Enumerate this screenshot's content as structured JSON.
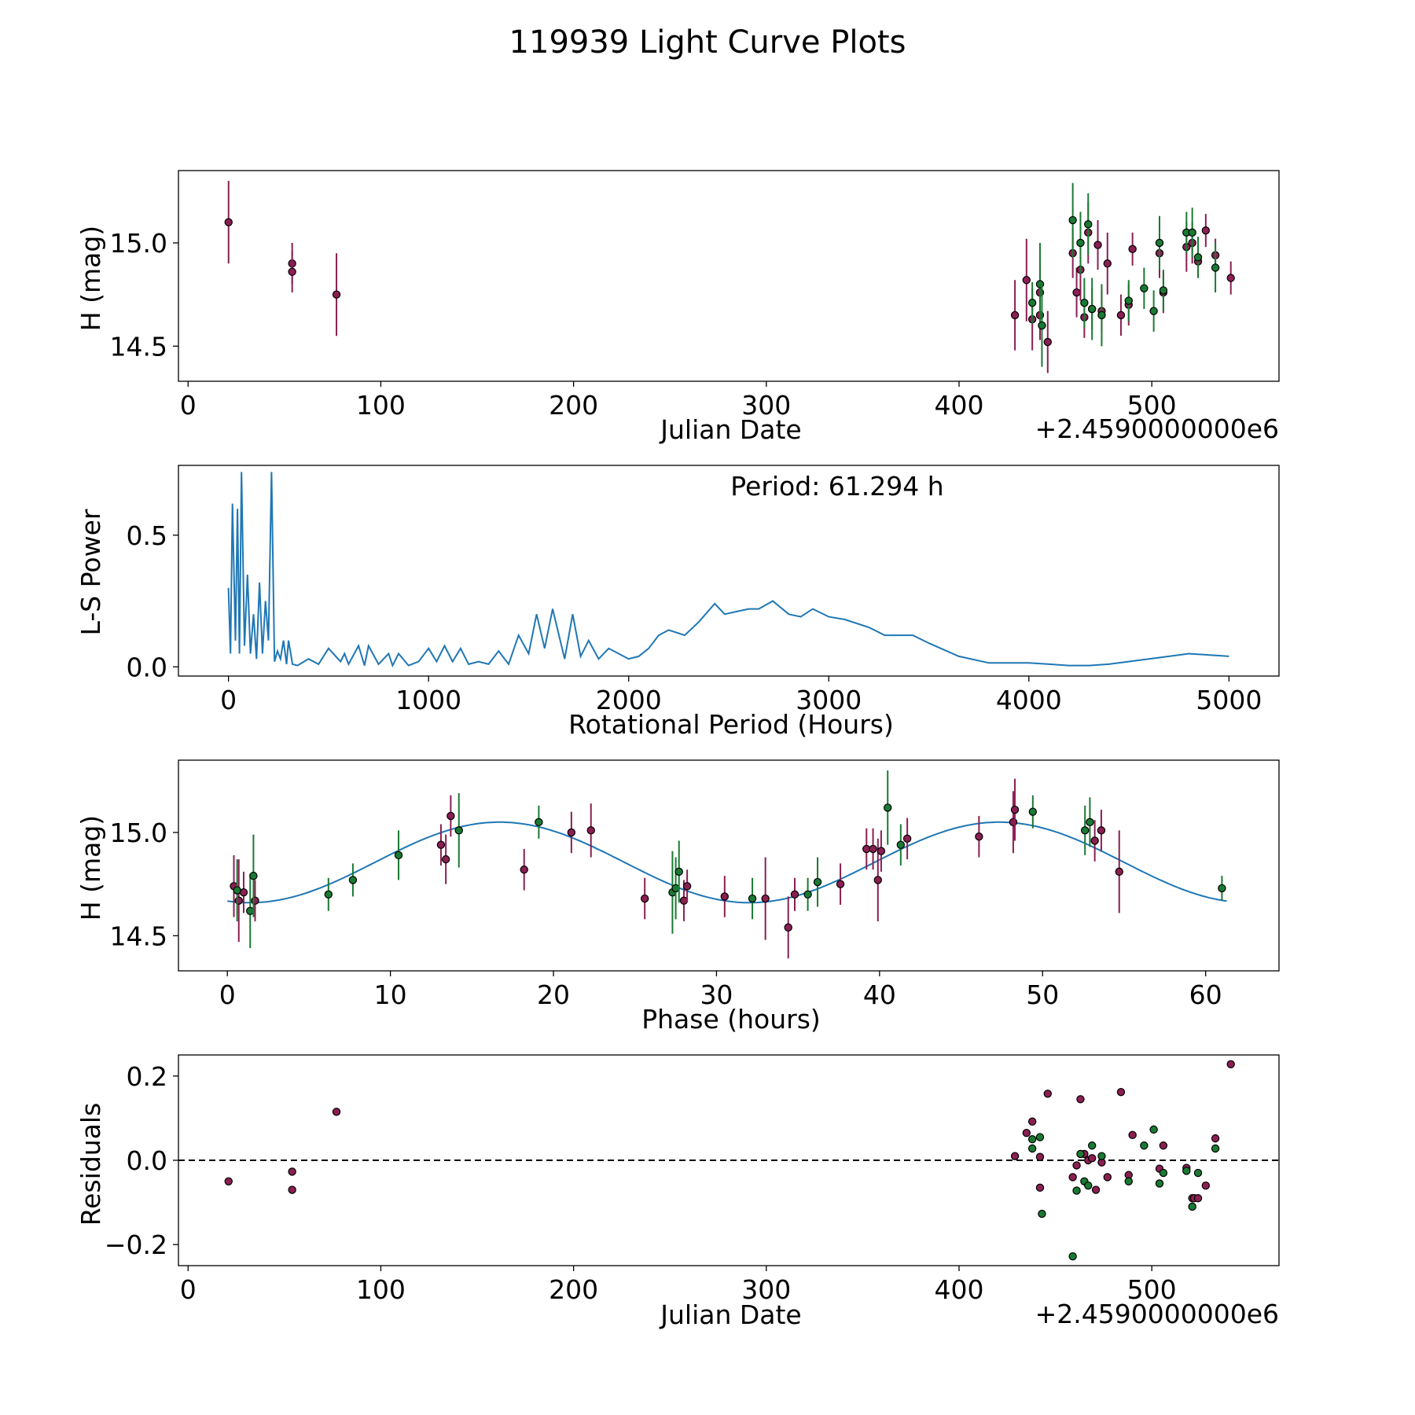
{
  "figure": {
    "title": "119939 Light Curve Plots"
  },
  "colors": {
    "purple": "#8a1f52",
    "green": "#1a7a33",
    "curve": "#1f77b4",
    "marker_edge": "#000000"
  },
  "chart_data": [
    {
      "id": "lightcurve",
      "type": "scatter",
      "xlabel": "Julian Date",
      "ylabel": "H (mag)",
      "offset_label": "+2.4590000000e6",
      "xlim": [
        -5,
        566
      ],
      "ylim": [
        14.33,
        15.35
      ],
      "xticks": [
        0,
        100,
        200,
        300,
        400,
        500
      ],
      "xtick_labels": [
        "0",
        "100",
        "200",
        "300",
        "400",
        "500"
      ],
      "yticks": [
        14.5,
        15.0
      ],
      "ytick_labels": [
        "14.5",
        "15.0"
      ],
      "y_inverted": false,
      "series": [
        {
          "name": "purple",
          "color": "purple",
          "points": [
            [
              21,
              15.1,
              0.2
            ],
            [
              54,
              14.9,
              0.1
            ],
            [
              54,
              14.86,
              0.1
            ],
            [
              77,
              14.75,
              0.2
            ],
            [
              429,
              14.65,
              0.17
            ],
            [
              435,
              14.82,
              0.2
            ],
            [
              438,
              14.63,
              0.15
            ],
            [
              442,
              14.76,
              0.15
            ],
            [
              442,
              14.65,
              0.12
            ],
            [
              446,
              14.52,
              0.15
            ],
            [
              459,
              14.95,
              0.12
            ],
            [
              461,
              14.76,
              0.12
            ],
            [
              463,
              14.87,
              0.15
            ],
            [
              465,
              14.64,
              0.1
            ],
            [
              467,
              15.05,
              0.15
            ],
            [
              469,
              14.68,
              0.1
            ],
            [
              472,
              14.99,
              0.12
            ],
            [
              474,
              14.67,
              0.1
            ],
            [
              477,
              14.9,
              0.15
            ],
            [
              484,
              14.65,
              0.1
            ],
            [
              488,
              14.7,
              0.1
            ],
            [
              490,
              14.97,
              0.08
            ],
            [
              504,
              14.95,
              0.12
            ],
            [
              506,
              14.76,
              0.1
            ],
            [
              518,
              14.98,
              0.12
            ],
            [
              521,
              15.0,
              0.1
            ],
            [
              524,
              14.91,
              0.08
            ],
            [
              528,
              15.06,
              0.08
            ],
            [
              533,
              14.94,
              0.08
            ],
            [
              541,
              14.83,
              0.08
            ]
          ]
        },
        {
          "name": "green",
          "color": "green",
          "points": [
            [
              438,
              14.71,
              0.1
            ],
            [
              442,
              14.8,
              0.2
            ],
            [
              443,
              14.6,
              0.2
            ],
            [
              459,
              15.11,
              0.18
            ],
            [
              463,
              15.0,
              0.15
            ],
            [
              465,
              14.71,
              0.12
            ],
            [
              467,
              15.09,
              0.15
            ],
            [
              469,
              14.68,
              0.15
            ],
            [
              474,
              14.65,
              0.15
            ],
            [
              488,
              14.72,
              0.1
            ],
            [
              496,
              14.78,
              0.1
            ],
            [
              501,
              14.67,
              0.1
            ],
            [
              504,
              15.0,
              0.13
            ],
            [
              506,
              14.77,
              0.1
            ],
            [
              518,
              15.05,
              0.1
            ],
            [
              521,
              15.05,
              0.12
            ],
            [
              524,
              14.93,
              0.1
            ],
            [
              533,
              14.88,
              0.12
            ]
          ]
        }
      ]
    },
    {
      "id": "periodogram",
      "type": "line",
      "xlabel": "Rotational Period (Hours)",
      "ylabel": "L-S Power",
      "annotation": "Period: 61.294 h",
      "xlim": [
        -250,
        5250
      ],
      "ylim": [
        -0.035,
        0.765
      ],
      "xticks": [
        0,
        1000,
        2000,
        3000,
        4000,
        5000
      ],
      "xtick_labels": [
        "0",
        "1000",
        "2000",
        "3000",
        "4000",
        "5000"
      ],
      "yticks": [
        0.0,
        0.5
      ],
      "ytick_labels": [
        "0.0",
        "0.5"
      ],
      "x": [
        0,
        10,
        20,
        35,
        45,
        55,
        65,
        80,
        95,
        110,
        125,
        140,
        155,
        170,
        185,
        200,
        215,
        230,
        245,
        260,
        275,
        290,
        300,
        320,
        345,
        400,
        450,
        500,
        560,
        580,
        600,
        650,
        680,
        700,
        750,
        800,
        820,
        850,
        900,
        950,
        1000,
        1040,
        1080,
        1120,
        1160,
        1200,
        1250,
        1300,
        1350,
        1400,
        1450,
        1500,
        1540,
        1580,
        1620,
        1680,
        1720,
        1760,
        1800,
        1850,
        1900,
        1950,
        2000,
        2050,
        2100,
        2150,
        2200,
        2280,
        2350,
        2430,
        2480,
        2540,
        2600,
        2650,
        2720,
        2800,
        2860,
        2920,
        3000,
        3080,
        3200,
        3280,
        3350,
        3420,
        3500,
        3650,
        3800,
        4000,
        4100,
        4200,
        4300,
        4400,
        4600,
        4800,
        5000
      ],
      "y": [
        0.3,
        0.05,
        0.62,
        0.1,
        0.6,
        0.05,
        0.74,
        0.08,
        0.35,
        0.05,
        0.2,
        0.03,
        0.32,
        0.05,
        0.25,
        0.1,
        0.74,
        0.02,
        0.06,
        0.03,
        0.1,
        0.01,
        0.1,
        0.01,
        0.005,
        0.03,
        0.01,
        0.07,
        0.02,
        0.05,
        0.01,
        0.08,
        0.005,
        0.08,
        0.01,
        0.05,
        0.005,
        0.05,
        0.005,
        0.02,
        0.07,
        0.02,
        0.08,
        0.02,
        0.07,
        0.01,
        0.02,
        0.01,
        0.06,
        0.01,
        0.12,
        0.05,
        0.2,
        0.07,
        0.22,
        0.03,
        0.2,
        0.04,
        0.1,
        0.03,
        0.07,
        0.05,
        0.03,
        0.04,
        0.07,
        0.12,
        0.14,
        0.12,
        0.17,
        0.24,
        0.2,
        0.21,
        0.22,
        0.22,
        0.25,
        0.2,
        0.19,
        0.22,
        0.19,
        0.18,
        0.15,
        0.12,
        0.12,
        0.12,
        0.09,
        0.04,
        0.015,
        0.015,
        0.01,
        0.005,
        0.005,
        0.01,
        0.03,
        0.05,
        0.04
      ]
    },
    {
      "id": "phased",
      "type": "scatter",
      "xlabel": "Phase (hours)",
      "ylabel": "H (mag)",
      "xlim": [
        -3,
        64.5
      ],
      "ylim": [
        14.33,
        15.35
      ],
      "xticks": [
        0,
        10,
        20,
        30,
        40,
        50,
        60
      ],
      "xtick_labels": [
        "0",
        "10",
        "20",
        "30",
        "40",
        "50",
        "60"
      ],
      "yticks": [
        14.5,
        15.0
      ],
      "ytick_labels": [
        "14.5",
        "15.0"
      ],
      "fit": {
        "mean": 14.855,
        "amplitude": 0.195,
        "period": 30.647,
        "peak_phase": 16.7,
        "x_range": [
          0,
          61.3
        ]
      },
      "series": [
        {
          "name": "purple",
          "color": "purple",
          "points": [
            [
              0.4,
              14.74,
              0.15
            ],
            [
              0.7,
              14.67,
              0.2
            ],
            [
              1.0,
              14.71,
              0.1
            ],
            [
              1.7,
              14.67,
              0.1
            ],
            [
              13.1,
              14.94,
              0.1
            ],
            [
              13.4,
              14.87,
              0.12
            ],
            [
              13.7,
              15.08,
              0.1
            ],
            [
              18.2,
              14.82,
              0.1
            ],
            [
              21.1,
              15.0,
              0.1
            ],
            [
              22.3,
              15.01,
              0.13
            ],
            [
              25.6,
              14.68,
              0.1
            ],
            [
              28.0,
              14.67,
              0.1
            ],
            [
              28.2,
              14.74,
              0.08
            ],
            [
              30.5,
              14.69,
              0.1
            ],
            [
              33.0,
              14.68,
              0.2
            ],
            [
              34.4,
              14.54,
              0.15
            ],
            [
              34.8,
              14.7,
              0.08
            ],
            [
              37.6,
              14.75,
              0.1
            ],
            [
              39.2,
              14.92,
              0.1
            ],
            [
              39.6,
              14.92,
              0.1
            ],
            [
              39.9,
              14.77,
              0.2
            ],
            [
              40.1,
              14.91,
              0.1
            ],
            [
              41.7,
              14.97,
              0.1
            ],
            [
              46.1,
              14.98,
              0.1
            ],
            [
              48.2,
              15.05,
              0.15
            ],
            [
              48.3,
              15.11,
              0.15
            ],
            [
              53.2,
              14.96,
              0.1
            ],
            [
              53.6,
              15.01,
              0.1
            ],
            [
              54.7,
              14.81,
              0.2
            ]
          ]
        },
        {
          "name": "green",
          "color": "green",
          "points": [
            [
              0.6,
              14.72,
              0.15
            ],
            [
              1.4,
              14.62,
              0.18
            ],
            [
              1.6,
              14.79,
              0.2
            ],
            [
              6.2,
              14.7,
              0.08
            ],
            [
              7.7,
              14.77,
              0.08
            ],
            [
              10.5,
              14.89,
              0.12
            ],
            [
              14.2,
              15.01,
              0.18
            ],
            [
              19.1,
              15.05,
              0.08
            ],
            [
              27.3,
              14.71,
              0.2
            ],
            [
              27.5,
              14.73,
              0.15
            ],
            [
              27.7,
              14.81,
              0.15
            ],
            [
              32.2,
              14.68,
              0.1
            ],
            [
              35.6,
              14.7,
              0.08
            ],
            [
              36.2,
              14.76,
              0.12
            ],
            [
              40.5,
              15.12,
              0.18
            ],
            [
              41.3,
              14.94,
              0.1
            ],
            [
              49.4,
              15.1,
              0.08
            ],
            [
              52.6,
              15.01,
              0.12
            ],
            [
              52.9,
              15.05,
              0.12
            ],
            [
              61.0,
              14.73,
              0.06
            ]
          ]
        }
      ]
    },
    {
      "id": "residuals",
      "type": "scatter",
      "xlabel": "Julian Date",
      "ylabel": "Residuals",
      "offset_label": "+2.4590000000e6",
      "xlim": [
        -5,
        566
      ],
      "ylim": [
        -0.25,
        0.25
      ],
      "xticks": [
        0,
        100,
        200,
        300,
        400,
        500
      ],
      "xtick_labels": [
        "0",
        "100",
        "200",
        "300",
        "400",
        "500"
      ],
      "yticks": [
        -0.2,
        0.0,
        0.2
      ],
      "ytick_labels": [
        "−0.2",
        "0.0",
        "0.2"
      ],
      "reference_line": 0.0,
      "series": [
        {
          "name": "purple",
          "color": "purple",
          "points": [
            [
              21,
              -0.05
            ],
            [
              54,
              -0.027
            ],
            [
              54,
              -0.07
            ],
            [
              77,
              0.115
            ],
            [
              429,
              0.01
            ],
            [
              435,
              0.065
            ],
            [
              438,
              0.092
            ],
            [
              442,
              0.008
            ],
            [
              442,
              -0.065
            ],
            [
              446,
              0.158
            ],
            [
              459,
              -0.04
            ],
            [
              461,
              -0.012
            ],
            [
              463,
              0.145
            ],
            [
              465,
              0.015
            ],
            [
              467,
              0.0
            ],
            [
              469,
              0.005
            ],
            [
              471,
              -0.07
            ],
            [
              474,
              -0.005
            ],
            [
              477,
              -0.04
            ],
            [
              484,
              0.162
            ],
            [
              488,
              -0.035
            ],
            [
              490,
              0.06
            ],
            [
              504,
              -0.02
            ],
            [
              506,
              0.035
            ],
            [
              518,
              -0.018
            ],
            [
              521,
              -0.09
            ],
            [
              522,
              -0.09
            ],
            [
              524,
              -0.09
            ],
            [
              528,
              -0.06
            ],
            [
              533,
              0.052
            ],
            [
              541,
              0.228
            ]
          ]
        },
        {
          "name": "green",
          "color": "green",
          "points": [
            [
              438,
              0.05
            ],
            [
              438,
              0.028
            ],
            [
              442,
              0.055
            ],
            [
              443,
              -0.127
            ],
            [
              459,
              -0.228
            ],
            [
              461,
              -0.072
            ],
            [
              463,
              0.015
            ],
            [
              465,
              -0.05
            ],
            [
              467,
              -0.06
            ],
            [
              469,
              0.035
            ],
            [
              474,
              0.01
            ],
            [
              488,
              -0.05
            ],
            [
              496,
              0.035
            ],
            [
              501,
              0.073
            ],
            [
              504,
              -0.055
            ],
            [
              506,
              -0.03
            ],
            [
              518,
              -0.025
            ],
            [
              521,
              -0.11
            ],
            [
              524,
              -0.03
            ],
            [
              533,
              0.028
            ]
          ]
        }
      ]
    }
  ]
}
